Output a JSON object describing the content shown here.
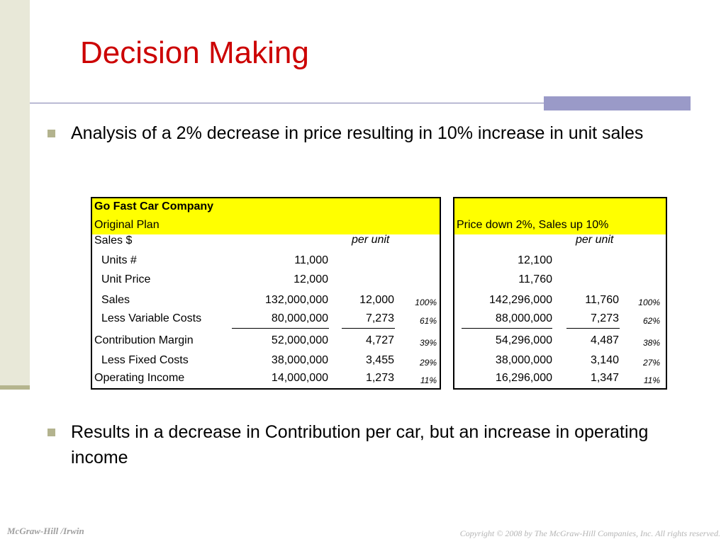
{
  "slide": {
    "title": "Decision Making",
    "bullets": [
      "Analysis of a 2% decrease in price resulting in 10% increase in unit sales",
      "Results in a decrease in Contribution per car, but an increase in operating income"
    ],
    "footer_left": "McGraw-Hill /Irwin",
    "footer_right": "Copyright © 2008 by The McGraw-Hill Companies, Inc. All rights reserved."
  },
  "table": {
    "company": "Go Fast Car Company",
    "original_plan": "Original Plan",
    "scenario_label": "Price down 2%, Sales up 10%",
    "sales_header": "Sales $",
    "per_unit": "per unit",
    "rows": {
      "units": {
        "label": "Units #",
        "orig_total": "11,000",
        "new_total": "12,100"
      },
      "unit_price": {
        "label": "Unit Price",
        "orig_total": "12,000",
        "new_total": "11,760"
      },
      "sales": {
        "label": "Sales",
        "orig_total": "132,000,000",
        "orig_unit": "12,000",
        "orig_pct": "100%",
        "new_total": "142,296,000",
        "new_unit": "11,760",
        "new_pct": "100%"
      },
      "variable": {
        "label": "Less Variable Costs",
        "orig_total": "80,000,000",
        "orig_unit": "7,273",
        "orig_pct": "61%",
        "new_total": "88,000,000",
        "new_unit": "7,273",
        "new_pct": "62%"
      },
      "cm": {
        "label": "Contribution Margin",
        "orig_total": "52,000,000",
        "orig_unit": "4,727",
        "orig_pct": "39%",
        "new_total": "54,296,000",
        "new_unit": "4,487",
        "new_pct": "38%"
      },
      "fixed": {
        "label": "Less Fixed Costs",
        "orig_total": "38,000,000",
        "orig_unit": "3,455",
        "orig_pct": "29%",
        "new_total": "38,000,000",
        "new_unit": "3,140",
        "new_pct": "27%"
      },
      "oi": {
        "label": "Operating Income",
        "orig_total": "14,000,000",
        "orig_unit": "1,273",
        "orig_pct": "11%",
        "new_total": "16,296,000",
        "new_unit": "1,347",
        "new_pct": "11%"
      }
    }
  }
}
